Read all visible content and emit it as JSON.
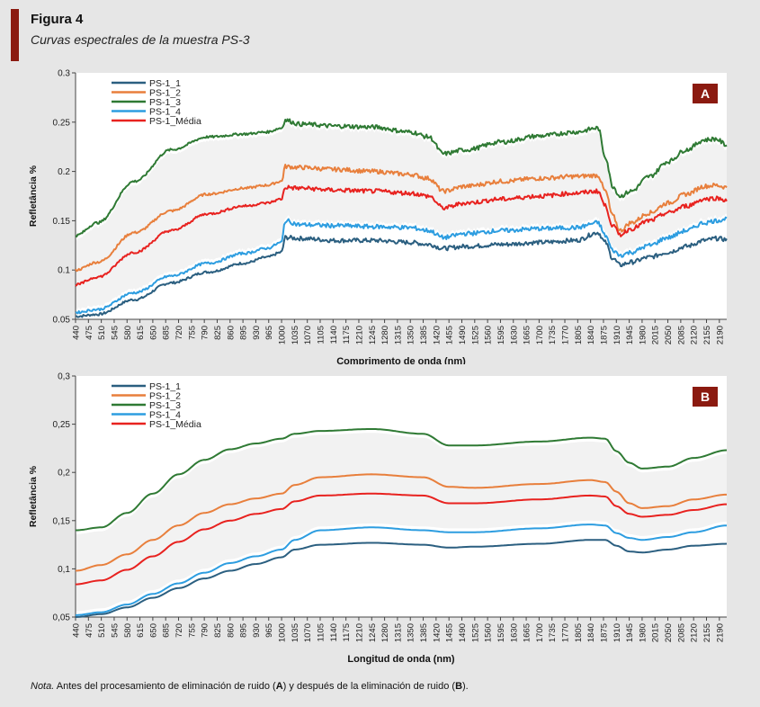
{
  "figure": {
    "label": "Figura 4",
    "title": "Curvas espectrales de la muestra PS-3",
    "accent_color": "#8b1a10"
  },
  "note": {
    "prefix": "Nota.",
    "p1": " Antes del procesamiento de eliminación de ruido (",
    "a": "A",
    "p2": ") y después de la eliminación de ruido (",
    "b": "B",
    "p3": ")."
  },
  "chart_data": [
    {
      "type": "line",
      "panel": "A",
      "xlabel": "Comprimento de onda (nm)",
      "ylabel": "Refletância %",
      "xlim": [
        440,
        2210
      ],
      "ylim": [
        0.05,
        0.3
      ],
      "yticks": [
        "0.05",
        "0.1",
        "0.15",
        "0.2",
        "0.25",
        "0.3"
      ],
      "ytick_values": [
        0.05,
        0.1,
        0.15,
        0.2,
        0.25,
        0.3
      ],
      "xticks": [
        440,
        475,
        510,
        545,
        580,
        615,
        650,
        685,
        720,
        755,
        790,
        825,
        860,
        895,
        930,
        965,
        1000,
        1035,
        1070,
        1105,
        1140,
        1175,
        1210,
        1245,
        1280,
        1315,
        1350,
        1385,
        1420,
        1455,
        1490,
        1525,
        1560,
        1595,
        1630,
        1665,
        1700,
        1735,
        1770,
        1805,
        1840,
        1875,
        1910,
        1945,
        1980,
        2015,
        2050,
        2085,
        2120,
        2155,
        2190
      ],
      "xtick_labels": [
        "440",
        "475",
        "510",
        "545",
        "580",
        "615",
        "650",
        "685",
        "720",
        "755",
        "790",
        "825",
        "860",
        "895",
        "930",
        "965",
        "1000",
        "1035",
        "1070",
        "1105",
        "1140",
        "1175",
        "1210",
        "1245",
        "1280",
        "1315",
        "1350",
        "1385",
        "1420",
        "1455",
        "1490",
        "1525",
        "1560",
        "1595",
        "1630",
        "1665",
        "1700",
        "1735",
        "1770",
        "1805",
        "1840",
        "1875",
        "1910",
        "1945",
        "1980",
        "2015",
        "2050",
        "2085",
        "2120",
        "2155",
        "2190"
      ],
      "legend_position": "top-left",
      "noisy": true,
      "band": {
        "lower": "PS-1_4",
        "upper": "PS-1_3",
        "color": "#f2f2f2"
      },
      "series": [
        {
          "name": "PS-1_1",
          "color": "#2b5f80",
          "x": [
            440,
            500,
            600,
            700,
            800,
            900,
            960,
            1000,
            1010,
            1050,
            1150,
            1250,
            1350,
            1400,
            1440,
            1500,
            1600,
            1700,
            1800,
            1860,
            1880,
            1900,
            1920,
            1950,
            2000,
            2050,
            2100,
            2150,
            2180,
            2210
          ],
          "y": [
            0.053,
            0.055,
            0.07,
            0.087,
            0.098,
            0.107,
            0.113,
            0.118,
            0.133,
            0.132,
            0.13,
            0.13,
            0.128,
            0.126,
            0.122,
            0.124,
            0.126,
            0.128,
            0.13,
            0.138,
            0.128,
            0.112,
            0.105,
            0.108,
            0.113,
            0.118,
            0.124,
            0.13,
            0.132,
            0.131
          ]
        },
        {
          "name": "PS-1_2",
          "color": "#e87f3c",
          "x": [
            440,
            500,
            600,
            700,
            800,
            900,
            960,
            1000,
            1010,
            1050,
            1150,
            1250,
            1350,
            1400,
            1440,
            1500,
            1600,
            1700,
            1800,
            1860,
            1880,
            1900,
            1920,
            1950,
            2000,
            2050,
            2100,
            2150,
            2180,
            2210
          ],
          "y": [
            0.1,
            0.108,
            0.138,
            0.16,
            0.177,
            0.183,
            0.186,
            0.19,
            0.205,
            0.204,
            0.202,
            0.2,
            0.197,
            0.193,
            0.18,
            0.185,
            0.19,
            0.193,
            0.195,
            0.196,
            0.18,
            0.155,
            0.14,
            0.148,
            0.158,
            0.168,
            0.177,
            0.185,
            0.186,
            0.184
          ]
        },
        {
          "name": "PS-1_3",
          "color": "#2f7a34",
          "x": [
            440,
            500,
            600,
            700,
            800,
            900,
            960,
            1000,
            1010,
            1050,
            1150,
            1250,
            1350,
            1400,
            1440,
            1500,
            1600,
            1700,
            1800,
            1860,
            1880,
            1900,
            1920,
            1950,
            2000,
            2050,
            2100,
            2150,
            2180,
            2210
          ],
          "y": [
            0.135,
            0.148,
            0.19,
            0.222,
            0.235,
            0.238,
            0.24,
            0.244,
            0.252,
            0.248,
            0.246,
            0.245,
            0.24,
            0.235,
            0.218,
            0.222,
            0.23,
            0.236,
            0.24,
            0.244,
            0.215,
            0.185,
            0.175,
            0.18,
            0.195,
            0.21,
            0.222,
            0.232,
            0.233,
            0.227
          ]
        },
        {
          "name": "PS-1_4",
          "color": "#2d9de0",
          "x": [
            440,
            500,
            600,
            700,
            800,
            900,
            960,
            1000,
            1010,
            1050,
            1150,
            1250,
            1350,
            1400,
            1440,
            1500,
            1600,
            1700,
            1800,
            1860,
            1880,
            1900,
            1920,
            1950,
            2000,
            2050,
            2100,
            2150,
            2180,
            2210
          ],
          "y": [
            0.057,
            0.06,
            0.077,
            0.094,
            0.107,
            0.117,
            0.122,
            0.128,
            0.15,
            0.146,
            0.145,
            0.144,
            0.143,
            0.14,
            0.133,
            0.137,
            0.14,
            0.142,
            0.143,
            0.148,
            0.135,
            0.12,
            0.115,
            0.118,
            0.125,
            0.133,
            0.14,
            0.148,
            0.15,
            0.152
          ]
        },
        {
          "name": "PS-1_Média",
          "color": "#e8221f",
          "x": [
            440,
            500,
            600,
            700,
            800,
            900,
            960,
            1000,
            1010,
            1050,
            1150,
            1250,
            1350,
            1400,
            1440,
            1500,
            1600,
            1700,
            1800,
            1860,
            1880,
            1900,
            1920,
            1950,
            2000,
            2050,
            2100,
            2150,
            2180,
            2210
          ],
          "y": [
            0.085,
            0.093,
            0.118,
            0.14,
            0.157,
            0.165,
            0.168,
            0.172,
            0.184,
            0.183,
            0.181,
            0.18,
            0.178,
            0.175,
            0.163,
            0.168,
            0.172,
            0.175,
            0.178,
            0.18,
            0.165,
            0.145,
            0.136,
            0.142,
            0.15,
            0.158,
            0.165,
            0.172,
            0.173,
            0.171
          ]
        }
      ]
    },
    {
      "type": "line",
      "panel": "B",
      "xlabel": "Longitud de onda (nm)",
      "ylabel": "Refletância %",
      "xlim": [
        440,
        2210
      ],
      "ylim": [
        0.05,
        0.3
      ],
      "yticks": [
        "0,05",
        "0,1",
        "0,15",
        "0,2",
        "0,25",
        "0,3"
      ],
      "ytick_values": [
        0.05,
        0.1,
        0.15,
        0.2,
        0.25,
        0.3
      ],
      "xticks": [
        440,
        475,
        510,
        545,
        580,
        615,
        650,
        685,
        720,
        755,
        790,
        825,
        860,
        895,
        930,
        965,
        1000,
        1035,
        1070,
        1105,
        1140,
        1175,
        1210,
        1245,
        1280,
        1315,
        1350,
        1385,
        1420,
        1455,
        1490,
        1525,
        1560,
        1595,
        1630,
        1665,
        1700,
        1735,
        1770,
        1805,
        1840,
        1875,
        1910,
        1945,
        1980,
        2015,
        2050,
        2085,
        2120,
        2155,
        2190
      ],
      "xtick_labels": [
        "440",
        "475",
        "510",
        "545",
        "580",
        "615",
        "650",
        "685",
        "720",
        "755",
        "790",
        "825",
        "860",
        "895",
        "930",
        "965",
        "1000",
        "1035",
        "1070",
        "1105",
        "1140",
        "1175",
        "1210",
        "1245",
        "1280",
        "1315",
        "1350",
        "1385",
        "1420",
        "1455",
        "1490",
        "1525",
        "1560",
        "1595",
        "1630",
        "1665",
        "1700",
        "1735",
        "1770",
        "1805",
        "1840",
        "1875",
        "1910",
        "1945",
        "1980",
        "2015",
        "2050",
        "2085",
        "2120",
        "2155",
        "2190"
      ],
      "legend_position": "top-left",
      "noisy": false,
      "band": {
        "lower": "PS-1_4",
        "upper": "PS-1_3",
        "color": "#f2f2f2"
      },
      "series": [
        {
          "name": "PS-1_1",
          "color": "#2b5f80",
          "x": [
            440,
            510,
            580,
            650,
            720,
            790,
            860,
            930,
            1000,
            1035,
            1105,
            1245,
            1385,
            1455,
            1525,
            1700,
            1840,
            1880,
            1910,
            1945,
            1980,
            2050,
            2120,
            2210
          ],
          "y": [
            0.05,
            0.053,
            0.06,
            0.07,
            0.08,
            0.09,
            0.098,
            0.105,
            0.112,
            0.12,
            0.125,
            0.127,
            0.125,
            0.122,
            0.123,
            0.126,
            0.13,
            0.13,
            0.124,
            0.118,
            0.117,
            0.12,
            0.124,
            0.126
          ]
        },
        {
          "name": "PS-1_2",
          "color": "#e87f3c",
          "x": [
            440,
            510,
            580,
            650,
            720,
            790,
            860,
            930,
            1000,
            1035,
            1105,
            1245,
            1385,
            1455,
            1525,
            1700,
            1840,
            1880,
            1910,
            1945,
            1980,
            2050,
            2120,
            2210
          ],
          "y": [
            0.098,
            0.104,
            0.115,
            0.13,
            0.145,
            0.158,
            0.167,
            0.173,
            0.178,
            0.187,
            0.195,
            0.198,
            0.195,
            0.185,
            0.184,
            0.188,
            0.192,
            0.19,
            0.18,
            0.168,
            0.163,
            0.165,
            0.172,
            0.177
          ]
        },
        {
          "name": "PS-1_3",
          "color": "#2f7a34",
          "x": [
            440,
            510,
            580,
            650,
            720,
            790,
            860,
            930,
            1000,
            1035,
            1105,
            1245,
            1385,
            1455,
            1525,
            1700,
            1840,
            1880,
            1910,
            1945,
            1980,
            2050,
            2120,
            2210
          ],
          "y": [
            0.14,
            0.143,
            0.158,
            0.178,
            0.198,
            0.213,
            0.224,
            0.23,
            0.235,
            0.24,
            0.243,
            0.245,
            0.24,
            0.228,
            0.228,
            0.232,
            0.236,
            0.235,
            0.222,
            0.21,
            0.204,
            0.206,
            0.215,
            0.223
          ]
        },
        {
          "name": "PS-1_4",
          "color": "#2d9de0",
          "x": [
            440,
            510,
            580,
            650,
            720,
            790,
            860,
            930,
            1000,
            1035,
            1105,
            1245,
            1385,
            1455,
            1525,
            1700,
            1840,
            1880,
            1910,
            1945,
            1980,
            2050,
            2120,
            2210
          ],
          "y": [
            0.052,
            0.055,
            0.063,
            0.074,
            0.085,
            0.096,
            0.106,
            0.113,
            0.12,
            0.13,
            0.14,
            0.143,
            0.14,
            0.138,
            0.138,
            0.142,
            0.146,
            0.145,
            0.137,
            0.132,
            0.13,
            0.133,
            0.138,
            0.145
          ]
        },
        {
          "name": "PS-1_Média",
          "color": "#e8221f",
          "x": [
            440,
            510,
            580,
            650,
            720,
            790,
            860,
            930,
            1000,
            1035,
            1105,
            1245,
            1385,
            1455,
            1525,
            1700,
            1840,
            1880,
            1910,
            1945,
            1980,
            2050,
            2120,
            2210
          ],
          "y": [
            0.084,
            0.088,
            0.099,
            0.113,
            0.128,
            0.141,
            0.15,
            0.157,
            0.162,
            0.17,
            0.176,
            0.178,
            0.176,
            0.168,
            0.168,
            0.172,
            0.176,
            0.175,
            0.165,
            0.157,
            0.154,
            0.156,
            0.161,
            0.167
          ]
        }
      ]
    }
  ]
}
